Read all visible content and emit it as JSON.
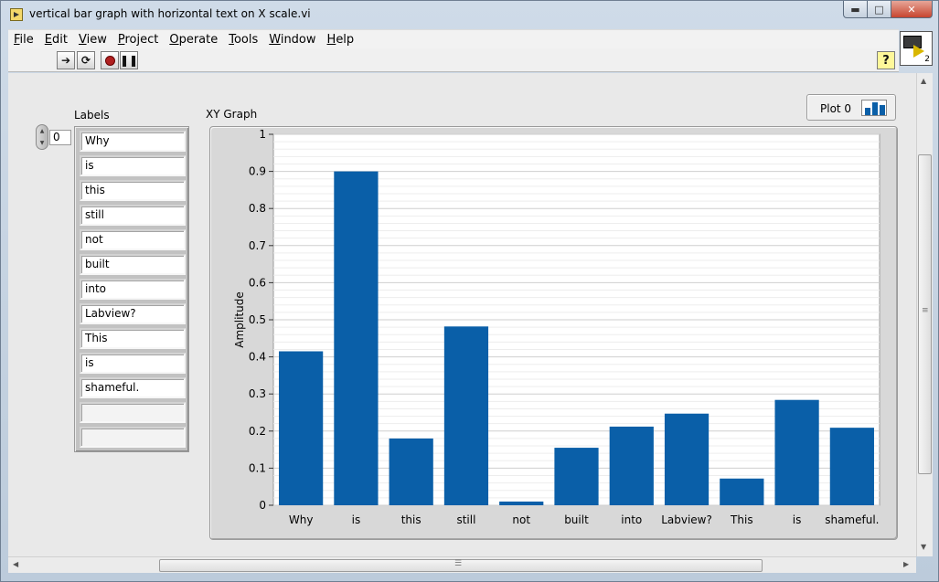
{
  "window": {
    "title": "vertical bar graph with horizontal text on X scale.vi",
    "vi_icon_number": "2"
  },
  "menu": [
    {
      "underline": "F",
      "rest": "ile"
    },
    {
      "underline": "E",
      "rest": "dit"
    },
    {
      "underline": "V",
      "rest": "iew"
    },
    {
      "underline": "P",
      "rest": "roject"
    },
    {
      "underline": "O",
      "rest": "perate"
    },
    {
      "underline": "T",
      "rest": "ools"
    },
    {
      "underline": "W",
      "rest": "indow"
    },
    {
      "underline": "H",
      "rest": "elp"
    }
  ],
  "toolbar": {
    "help_glyph": "?"
  },
  "labels_control": {
    "caption": "Labels",
    "index": "0",
    "items": [
      "Why",
      "is",
      "this",
      "still",
      "not",
      "built",
      "into",
      "Labview?",
      "This",
      "is",
      "shameful.",
      "",
      ""
    ]
  },
  "graph": {
    "caption": "XY Graph",
    "legend_label": "Plot 0"
  },
  "chart_data": {
    "type": "bar",
    "categories": [
      "Why",
      "is",
      "this",
      "still",
      "not",
      "built",
      "into",
      "Labview?",
      "This",
      "is",
      "shameful."
    ],
    "values": [
      0.415,
      0.9,
      0.18,
      0.482,
      0.01,
      0.155,
      0.212,
      0.247,
      0.072,
      0.284,
      0.209
    ],
    "title": "",
    "xlabel": "",
    "ylabel": "Amplitude",
    "ylim": [
      0,
      1
    ],
    "yticks": [
      "0",
      "0.1",
      "0.2",
      "0.3",
      "0.4",
      "0.5",
      "0.6",
      "0.7",
      "0.8",
      "0.9",
      "1"
    ],
    "minor_grid": true,
    "bar_color": "#0a5fa8",
    "legend_position": "top-right"
  }
}
